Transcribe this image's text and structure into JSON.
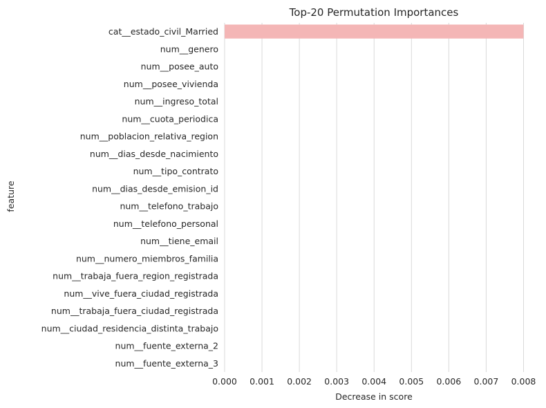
{
  "chart_data": {
    "type": "bar",
    "orientation": "horizontal",
    "title": "Top-20 Permutation Importances",
    "xlabel": "Decrease in score",
    "ylabel": "feature",
    "xlim": [
      0.0,
      0.008
    ],
    "xticks": [
      "0.000",
      "0.001",
      "0.002",
      "0.003",
      "0.004",
      "0.005",
      "0.006",
      "0.007",
      "0.008"
    ],
    "categories": [
      "cat__estado_civil_Married",
      "num__genero",
      "num__posee_auto",
      "num__posee_vivienda",
      "num__ingreso_total",
      "num__cuota_periodica",
      "num__poblacion_relativa_region",
      "num__dias_desde_nacimiento",
      "num__tipo_contrato",
      "num__dias_desde_emision_id",
      "num__telefono_trabajo",
      "num__telefono_personal",
      "num__tiene_email",
      "num__numero_miembros_familia",
      "num__trabaja_fuera_region_registrada",
      "num__vive_fuera_ciudad_registrada",
      "num__trabaja_fuera_ciudad_registrada",
      "num__ciudad_residencia_distinta_trabajo",
      "num__fuente_externa_2",
      "num__fuente_externa_3"
    ],
    "values": [
      0.008,
      0,
      0,
      0,
      0,
      0,
      0,
      0,
      0,
      0,
      0,
      0,
      0,
      0,
      0,
      0,
      0,
      0,
      0,
      0
    ],
    "grid": "x",
    "bar_color": "#f4b6b6",
    "grid_color": "#d9d9d9",
    "text_color": "#262626"
  }
}
